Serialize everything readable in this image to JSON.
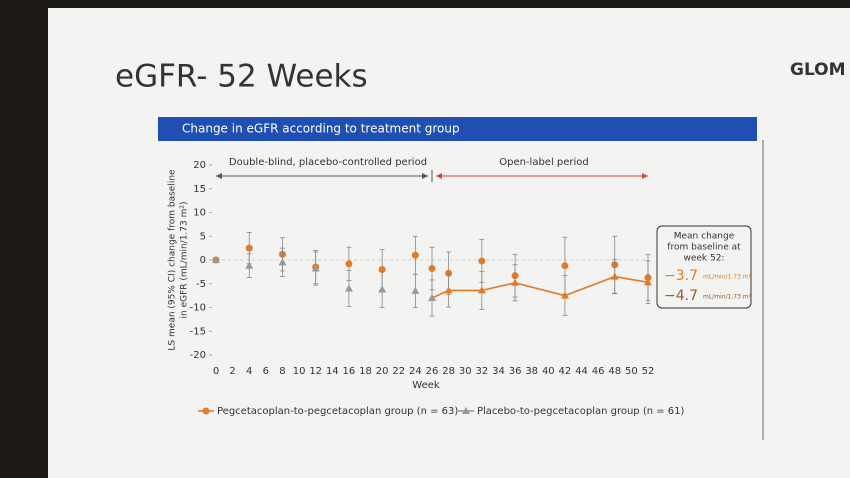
{
  "slide_title": "eGFR- 52 Weeks",
  "logo_text": "GLOM",
  "chart_data": {
    "type": "line",
    "title": "Change in eGFR according to treatment group",
    "ylabel_lines": [
      "LS mean (95% CI) change from baseline",
      "in eGFR (mL/min/1.73 m²)"
    ],
    "xlabel": "Week",
    "xlim": [
      0,
      52
    ],
    "xticks": [
      0,
      2,
      4,
      6,
      8,
      10,
      12,
      14,
      16,
      18,
      20,
      22,
      24,
      26,
      28,
      30,
      32,
      34,
      36,
      38,
      40,
      42,
      44,
      46,
      48,
      50,
      52
    ],
    "ylim": [
      -20,
      20
    ],
    "yticks": [
      -20,
      -15,
      -10,
      -5,
      0,
      5,
      10,
      15,
      20
    ],
    "period_split": 26,
    "periods": [
      "Double-blind, placebo-controlled period",
      "Open-label period"
    ],
    "x": [
      0,
      4,
      8,
      12,
      16,
      20,
      24,
      26,
      28,
      32,
      36,
      42,
      48,
      52
    ],
    "series": [
      {
        "name": "Pegcetacoplan-to-pegcetacoplan group (n = 63)",
        "color": "#e07b2a",
        "marker": "circle",
        "values": [
          0,
          2.5,
          1.2,
          -1.5,
          -0.8,
          -2,
          1,
          -1.8,
          -2.8,
          -0.2,
          -3.3,
          -1.2,
          -1,
          -3.7
        ],
        "errors": [
          0,
          3.3,
          3.5,
          3.5,
          3.5,
          4.2,
          4,
          4.5,
          4.5,
          4.5,
          4.5,
          6,
          6,
          4.8
        ]
      },
      {
        "name": "Placebo-to-pegcetacoplan group (n = 61)",
        "color": "#999999",
        "open_label_color": "#e07b2a",
        "marker": "triangle",
        "values": [
          0,
          -1.2,
          -0.5,
          -1.8,
          -6,
          -6.2,
          -6.5,
          -8,
          -6.4,
          -6.4,
          -4.8,
          -7.5,
          -3.5,
          -4.7
        ],
        "errors": [
          0,
          2.5,
          3,
          3.5,
          3.8,
          3.8,
          3.5,
          3.8,
          3.5,
          4,
          3.8,
          4.2,
          3.6,
          4.5
        ]
      }
    ],
    "box_title_lines": [
      "Mean change",
      "from baseline at",
      "week 52:"
    ],
    "box_labels": [
      "−3.7",
      "−4.7"
    ],
    "box_colors": [
      "#e07b2a",
      "#9a5a2a"
    ],
    "box_unit": "mL/min/1.73 m²"
  }
}
